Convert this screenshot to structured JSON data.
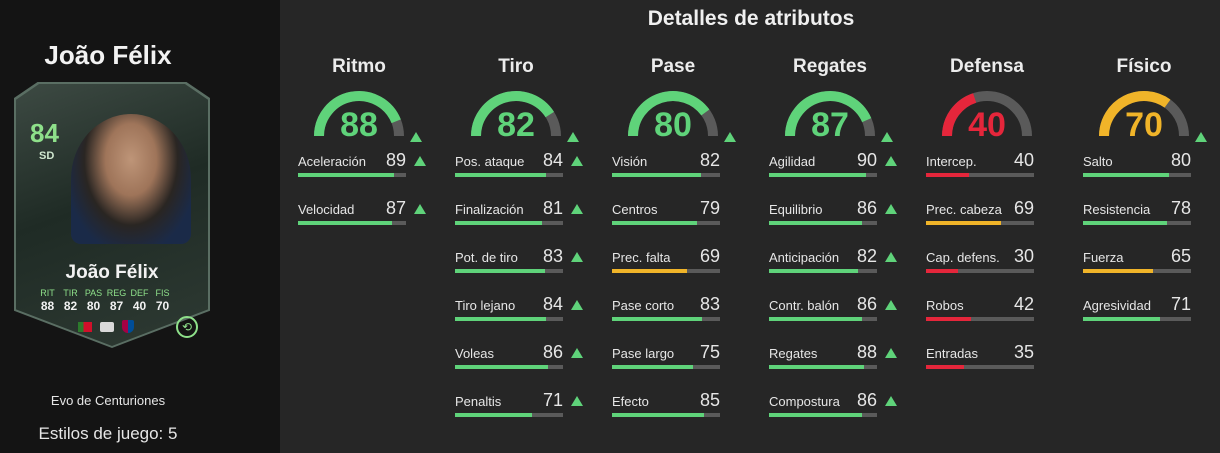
{
  "player": {
    "name": "João Félix",
    "card_rating": "84",
    "card_position": "SD",
    "card_name": "João Félix",
    "card_stats": [
      {
        "label": "RIT",
        "value": "88"
      },
      {
        "label": "TIR",
        "value": "82"
      },
      {
        "label": "PAS",
        "value": "80"
      },
      {
        "label": "REG",
        "value": "87"
      },
      {
        "label": "DEF",
        "value": "40"
      },
      {
        "label": "FIS",
        "value": "70"
      }
    ],
    "evo_name": "Evo de Centuriones",
    "playstyles": "Estilos de juego: 5"
  },
  "section_title": "Detalles de atributos",
  "colors": {
    "green": "#5fd37a",
    "red": "#e5263b",
    "yellow": "#f0b429",
    "track": "#5a5a5a"
  },
  "categories": [
    {
      "title": "Ritmo",
      "value": 88,
      "color": "green",
      "stats": [
        {
          "name": "Aceleración",
          "value": 89,
          "color": "green"
        },
        {
          "name": "Velocidad",
          "value": 87,
          "color": "green"
        }
      ]
    },
    {
      "title": "Tiro",
      "value": 82,
      "color": "green",
      "stats": [
        {
          "name": "Pos. ataque",
          "value": 84,
          "color": "green"
        },
        {
          "name": "Finalización",
          "value": 81,
          "color": "green"
        },
        {
          "name": "Pot. de tiro",
          "value": 83,
          "color": "green"
        },
        {
          "name": "Tiro lejano",
          "value": 84,
          "color": "green"
        },
        {
          "name": "Voleas",
          "value": 86,
          "color": "green"
        },
        {
          "name": "Penaltis",
          "value": 71,
          "color": "green"
        }
      ]
    },
    {
      "title": "Pase",
      "value": 80,
      "color": "green",
      "stats": [
        {
          "name": "Visión",
          "value": 82,
          "color": "green"
        },
        {
          "name": "Centros",
          "value": 79,
          "color": "green"
        },
        {
          "name": "Prec. falta",
          "value": 69,
          "color": "yellow"
        },
        {
          "name": "Pase corto",
          "value": 83,
          "color": "green"
        },
        {
          "name": "Pase largo",
          "value": 75,
          "color": "green"
        },
        {
          "name": "Efecto",
          "value": 85,
          "color": "green"
        }
      ]
    },
    {
      "title": "Regates",
      "value": 87,
      "color": "green",
      "stats": [
        {
          "name": "Agilidad",
          "value": 90,
          "color": "green"
        },
        {
          "name": "Equilibrio",
          "value": 86,
          "color": "green"
        },
        {
          "name": "Anticipación",
          "value": 82,
          "color": "green"
        },
        {
          "name": "Contr. balón",
          "value": 86,
          "color": "green"
        },
        {
          "name": "Regates",
          "value": 88,
          "color": "green"
        },
        {
          "name": "Compostura",
          "value": 86,
          "color": "green"
        }
      ]
    },
    {
      "title": "Defensa",
      "value": 40,
      "color": "red",
      "stats": [
        {
          "name": "Intercep.",
          "value": 40,
          "color": "red"
        },
        {
          "name": "Prec. cabeza",
          "value": 69,
          "color": "yellow"
        },
        {
          "name": "Cap. defens.",
          "value": 30,
          "color": "red"
        },
        {
          "name": "Robos",
          "value": 42,
          "color": "red"
        },
        {
          "name": "Entradas",
          "value": 35,
          "color": "red"
        }
      ]
    },
    {
      "title": "Físico",
      "value": 70,
      "color": "yellow",
      "stats": [
        {
          "name": "Salto",
          "value": 80,
          "color": "green"
        },
        {
          "name": "Resistencia",
          "value": 78,
          "color": "green"
        },
        {
          "name": "Fuerza",
          "value": 65,
          "color": "yellow"
        },
        {
          "name": "Agresividad",
          "value": 71,
          "color": "green"
        }
      ]
    }
  ],
  "improved_categories": [
    "Ritmo",
    "Tiro",
    "Pase",
    "Regates",
    "Físico"
  ],
  "improved_stats": [
    "Aceleración",
    "Velocidad",
    "Pos. ataque",
    "Finalización",
    "Pot. de tiro",
    "Tiro lejano",
    "Voleas",
    "Penaltis",
    "Agilidad",
    "Equilibrio",
    "Anticipación",
    "Contr. balón",
    "Regates",
    "Compostura"
  ]
}
